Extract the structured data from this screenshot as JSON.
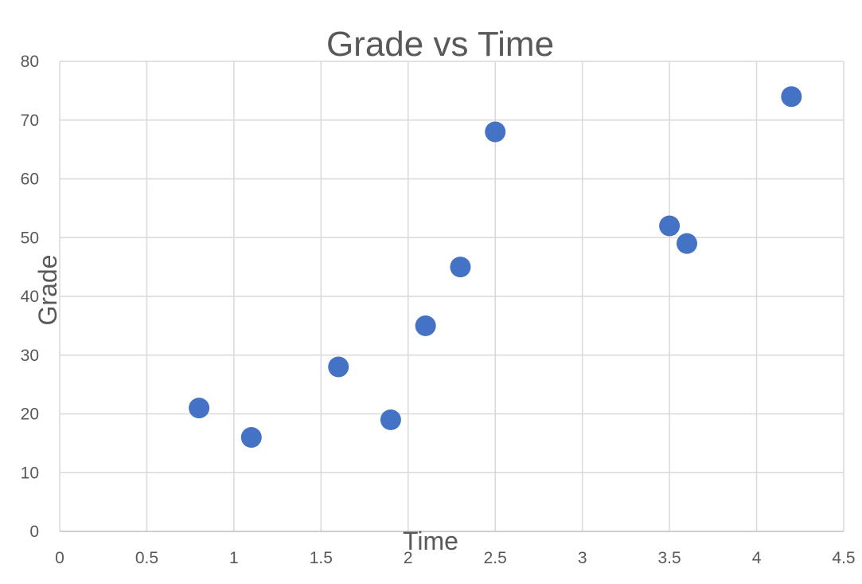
{
  "chart_data": {
    "type": "scatter",
    "title": "Grade vs Time",
    "xlabel": "Time",
    "ylabel": "Grade",
    "xlim": [
      0,
      4.5
    ],
    "ylim": [
      0,
      80
    ],
    "x_ticks": [
      "0",
      "0.5",
      "1",
      "1.5",
      "2",
      "2.5",
      "3",
      "3.5",
      "4",
      "4.5"
    ],
    "y_ticks": [
      "0",
      "10",
      "20",
      "30",
      "40",
      "50",
      "60",
      "70",
      "80"
    ],
    "grid": true,
    "legend": false,
    "marker_color": "#4472c4",
    "series": [
      {
        "x": [
          0.8,
          1.1,
          1.6,
          1.9,
          2.1,
          2.3,
          2.5,
          3.5,
          3.6,
          4.2
        ],
        "y": [
          21,
          16,
          28,
          19,
          35,
          45,
          68,
          52,
          49,
          74
        ]
      }
    ]
  }
}
